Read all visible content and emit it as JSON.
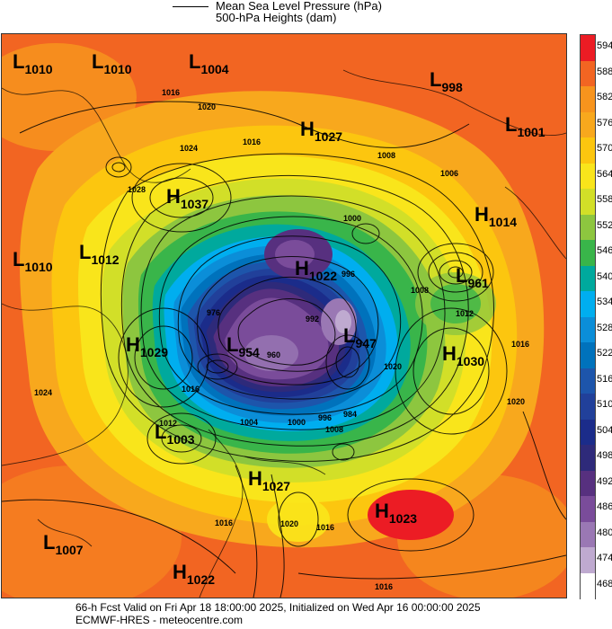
{
  "legend": {
    "line_label": "Mean Sea Level Pressure (hPa)",
    "fill_label": "500-hPa Heights (dam)"
  },
  "systems": [
    {
      "type": "L",
      "value": "1010"
    },
    {
      "type": "L",
      "value": "1010"
    },
    {
      "type": "L",
      "value": "1004"
    },
    {
      "type": "L",
      "value": "998"
    },
    {
      "type": "H",
      "value": "1027"
    },
    {
      "type": "L",
      "value": "1001"
    },
    {
      "type": "H",
      "value": "1037"
    },
    {
      "type": "H",
      "value": "1014"
    },
    {
      "type": "L",
      "value": "1010"
    },
    {
      "type": "L",
      "value": "1012"
    },
    {
      "type": "H",
      "value": "1022"
    },
    {
      "type": "L",
      "value": "961"
    },
    {
      "type": "H",
      "value": "1029"
    },
    {
      "type": "L",
      "value": "954"
    },
    {
      "type": "L",
      "value": "947"
    },
    {
      "type": "H",
      "value": "1030"
    },
    {
      "type": "L",
      "value": "1003"
    },
    {
      "type": "H",
      "value": "1027"
    },
    {
      "type": "H",
      "value": "1023"
    },
    {
      "type": "L",
      "value": "1007"
    },
    {
      "type": "H",
      "value": "1022"
    }
  ],
  "isobar_labels": [
    "1016",
    "1020",
    "1024",
    "1028",
    "1016",
    "1008",
    "1006",
    "1000",
    "996",
    "992",
    "1008",
    "1012",
    "1016",
    "1020",
    "1024",
    "1020",
    "1016",
    "1012",
    "1008",
    "1004",
    "1000",
    "996",
    "984",
    "976",
    "960",
    "1016",
    "1020",
    "1016",
    "1016"
  ],
  "colorbar": {
    "labels": [
      "594",
      "588",
      "582",
      "576",
      "570",
      "564",
      "558",
      "552",
      "546",
      "540",
      "534",
      "528",
      "522",
      "516",
      "510",
      "504",
      "498",
      "492",
      "486",
      "480",
      "474",
      "468"
    ],
    "colors": {
      "594": "#ec1c24",
      "588": "#f26522",
      "582": "#f7941d",
      "576": "#f8a81d",
      "570": "#fcc60f",
      "564": "#f9e51b",
      "558": "#d2df28",
      "552": "#8dc63f",
      "546": "#39b54a",
      "540": "#00a99d",
      "534": "#00aeef",
      "528": "#0b8ed8",
      "522": "#0072bc",
      "516": "#1d55ab",
      "510": "#21409a",
      "504": "#1b2c8a",
      "498": "#2e2a7a",
      "492": "#57307f",
      "486": "#7a4c9a",
      "480": "#9a78b4",
      "474": "#bfaad0",
      "468": "#ffffff"
    }
  },
  "footer": {
    "line1": "66-h Fcst Valid on Fri Apr 18 18:00:00 2025, Initialized on Wed Apr 16 00:00:00 2025",
    "line2": "ECMWF-HRES - meteocentre.com"
  }
}
